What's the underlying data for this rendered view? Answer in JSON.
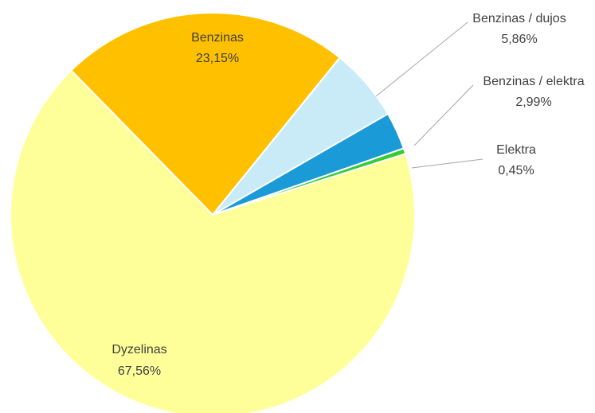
{
  "chart_data": {
    "type": "pie",
    "title": "",
    "slices": [
      {
        "name": "Dyzelinas",
        "value": 67.56,
        "label": "67,56%",
        "color": "#ffff99"
      },
      {
        "name": "Benzinas",
        "value": 23.15,
        "label": "23,15%",
        "color": "#ffc000"
      },
      {
        "name": "Benzinas / dujos",
        "value": 5.86,
        "label": "5,86%",
        "color": "#c9ebf8"
      },
      {
        "name": "Benzinas / elektra",
        "value": 2.99,
        "label": "2,99%",
        "color": "#1a9ad6"
      },
      {
        "name": "Elektra",
        "value": 0.45,
        "label": "0,45%",
        "color": "#33cc33"
      }
    ],
    "legend": "none",
    "data_labels": "category-and-percent"
  }
}
